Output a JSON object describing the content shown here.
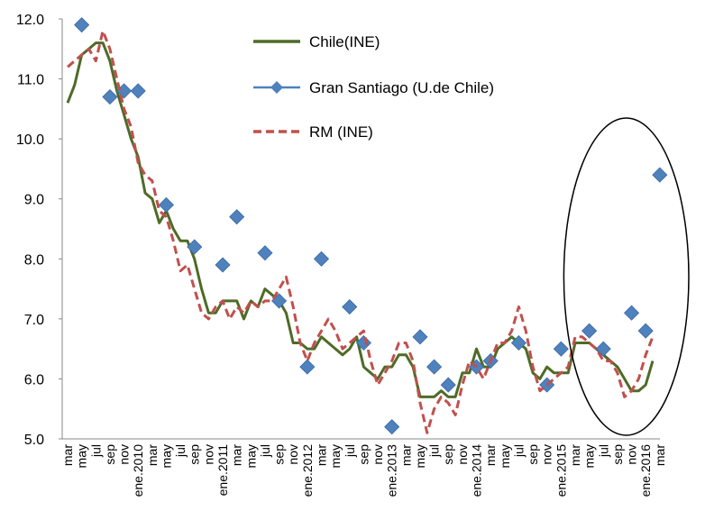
{
  "chart_data": {
    "type": "line",
    "title": "",
    "xlabel": "",
    "ylabel": "",
    "ylim": [
      5.0,
      12.0
    ],
    "yticks": [
      "5.0",
      "6.0",
      "7.0",
      "8.0",
      "9.0",
      "10.0",
      "11.0",
      "12.0"
    ],
    "grid": false,
    "legend_position": "top-center",
    "x_labels": [
      "mar",
      "may",
      "jul",
      "sep",
      "nov",
      "ene.2010",
      "mar",
      "may",
      "jul",
      "sep",
      "nov",
      "ene.2011",
      "mar",
      "may",
      "jul",
      "sep",
      "nov",
      "ene.2012",
      "mar",
      "may",
      "jul",
      "sep",
      "nov",
      "ene.2013",
      "mar",
      "may",
      "jul",
      "sep",
      "nov",
      "ene.2014",
      "mar",
      "may",
      "jul",
      "sep",
      "nov",
      "ene.2015",
      "mar",
      "may",
      "jul",
      "sep",
      "nov",
      "ene.2016",
      "mar"
    ],
    "series": [
      {
        "name": "Chile(INE)",
        "style": "solid-line",
        "color": "#4e6b27",
        "values": [
          10.6,
          10.9,
          11.4,
          11.5,
          11.6,
          11.6,
          11.3,
          10.8,
          10.4,
          10.0,
          9.7,
          9.1,
          9.0,
          8.6,
          8.8,
          8.5,
          8.3,
          8.3,
          8.0,
          7.5,
          7.1,
          7.1,
          7.3,
          7.3,
          7.3,
          7.0,
          7.3,
          7.2,
          7.5,
          7.4,
          7.3,
          7.1,
          6.6,
          6.6,
          6.5,
          6.5,
          6.7,
          6.6,
          6.5,
          6.4,
          6.5,
          6.7,
          6.2,
          6.1,
          6.0,
          6.2,
          6.2,
          6.4,
          6.4,
          6.2,
          5.7,
          5.7,
          5.7,
          5.8,
          5.7,
          5.7,
          6.1,
          6.1,
          6.5,
          6.2,
          6.2,
          6.5,
          6.6,
          6.7,
          6.6,
          6.5,
          6.1,
          6.0,
          6.2,
          6.1,
          6.1,
          6.1,
          6.6,
          6.6,
          6.6,
          6.5,
          6.4,
          6.3,
          6.2,
          6.0,
          5.8,
          5.8,
          5.9,
          6.3
        ]
      },
      {
        "name": "Gran  Santiago (U.de Chile)",
        "style": "diamond-markers",
        "color": "#4f81bd",
        "values": [
          null,
          null,
          11.9,
          null,
          null,
          null,
          10.7,
          null,
          10.8,
          null,
          10.8,
          null,
          null,
          null,
          8.9,
          null,
          null,
          null,
          8.2,
          null,
          null,
          null,
          7.9,
          null,
          8.7,
          null,
          null,
          null,
          8.1,
          null,
          7.3,
          null,
          null,
          null,
          6.2,
          null,
          8.0,
          null,
          null,
          null,
          7.2,
          null,
          6.6,
          null,
          null,
          null,
          5.2,
          null,
          null,
          null,
          6.7,
          null,
          6.2,
          null,
          5.9,
          null,
          null,
          null,
          6.2,
          null,
          6.3,
          null,
          null,
          null,
          6.6,
          null,
          null,
          null,
          5.9,
          null,
          6.5,
          null,
          null,
          null,
          6.8,
          null,
          6.5,
          null,
          null,
          null,
          7.1,
          null,
          6.8,
          null,
          9.4
        ]
      },
      {
        "name": "RM (INE)",
        "style": "dashed-line",
        "color": "#c0504d",
        "values": [
          11.2,
          11.3,
          11.4,
          11.5,
          11.3,
          11.8,
          11.5,
          11.0,
          10.5,
          10.2,
          9.6,
          9.4,
          9.3,
          8.8,
          8.7,
          8.3,
          7.8,
          7.9,
          7.5,
          7.1,
          7.0,
          7.2,
          7.3,
          7.0,
          7.2,
          7.1,
          7.3,
          7.2,
          7.3,
          7.3,
          7.5,
          7.7,
          7.2,
          6.6,
          6.3,
          6.6,
          6.8,
          7.0,
          6.8,
          6.5,
          6.6,
          6.7,
          6.8,
          6.3,
          5.9,
          6.1,
          6.3,
          6.6,
          6.6,
          6.3,
          5.6,
          5.1,
          5.5,
          5.7,
          5.6,
          5.4,
          5.9,
          6.3,
          6.2,
          6.0,
          6.3,
          6.6,
          6.6,
          6.8,
          7.2,
          6.8,
          6.2,
          5.8,
          5.9,
          6.0,
          6.1,
          6.2,
          6.7,
          6.7,
          6.6,
          6.5,
          6.3,
          6.3,
          6.1,
          5.7,
          5.8,
          6.0,
          6.4,
          6.7
        ]
      }
    ],
    "annotation": {
      "shape": "ellipse",
      "color": "#000000",
      "covers_points": [
        75,
        83
      ]
    }
  }
}
